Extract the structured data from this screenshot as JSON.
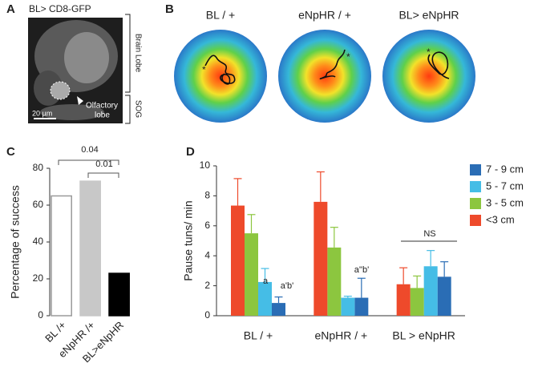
{
  "panels": {
    "A": {
      "letter": "A",
      "title": "BL> CD8-GFP",
      "brain_lobe": "Brain Lobe",
      "sog": "SOG",
      "olfactory": [
        "Olfactory",
        "lobe"
      ],
      "scale": "20 µm"
    },
    "B": {
      "letter": "B",
      "titles": [
        "BL / +",
        "eNpHR / +",
        "BL> eNpHR"
      ]
    },
    "C": {
      "letter": "C"
    },
    "D": {
      "letter": "D"
    }
  },
  "chart_data": [
    {
      "type": "bar",
      "ylabel": "Percentage of success",
      "categories": [
        "BL /+",
        "eNpHR /+",
        "BL>eNpHR"
      ],
      "values": [
        65,
        73,
        23
      ],
      "colors": [
        "#ffffff",
        "#c8c8c8",
        "#000000"
      ],
      "edge_colors": [
        "#9a9a9a",
        "#c8c8c8",
        "#000000"
      ],
      "ylim": [
        0,
        80
      ],
      "yticks": [
        0,
        20,
        40,
        60,
        80
      ],
      "annotations": [
        "0.04",
        "0.01"
      ]
    },
    {
      "type": "grouped_bar",
      "ylabel": "Pause tuns/ min",
      "categories": [
        "BL / +",
        "eNpHR / +",
        "BL > eNpHR"
      ],
      "series": [
        {
          "name": "7 - 9 cm",
          "color": "#2a6db5",
          "values": [
            0.85,
            1.2,
            2.6
          ],
          "errors": [
            0.4,
            1.3,
            1.0
          ]
        },
        {
          "name": "5 - 7 cm",
          "color": "#45bde6",
          "values": [
            2.25,
            1.2,
            3.3
          ],
          "errors": [
            0.9,
            0.1,
            1.05
          ]
        },
        {
          "name": "3 - 5 cm",
          "color": "#8cc63f",
          "values": [
            5.5,
            4.55,
            1.85
          ],
          "errors": [
            1.25,
            1.35,
            0.8
          ]
        },
        {
          "name": "<3 cm",
          "color": "#ee4a2b",
          "values": [
            7.35,
            7.6,
            2.1
          ],
          "errors": [
            1.8,
            2.0,
            1.1
          ]
        }
      ],
      "ylim": [
        0,
        10
      ],
      "yticks": [
        0,
        2,
        4,
        6,
        8,
        10
      ],
      "annotations": [
        "a'b'",
        "a",
        "a''b'",
        "NS"
      ]
    }
  ]
}
